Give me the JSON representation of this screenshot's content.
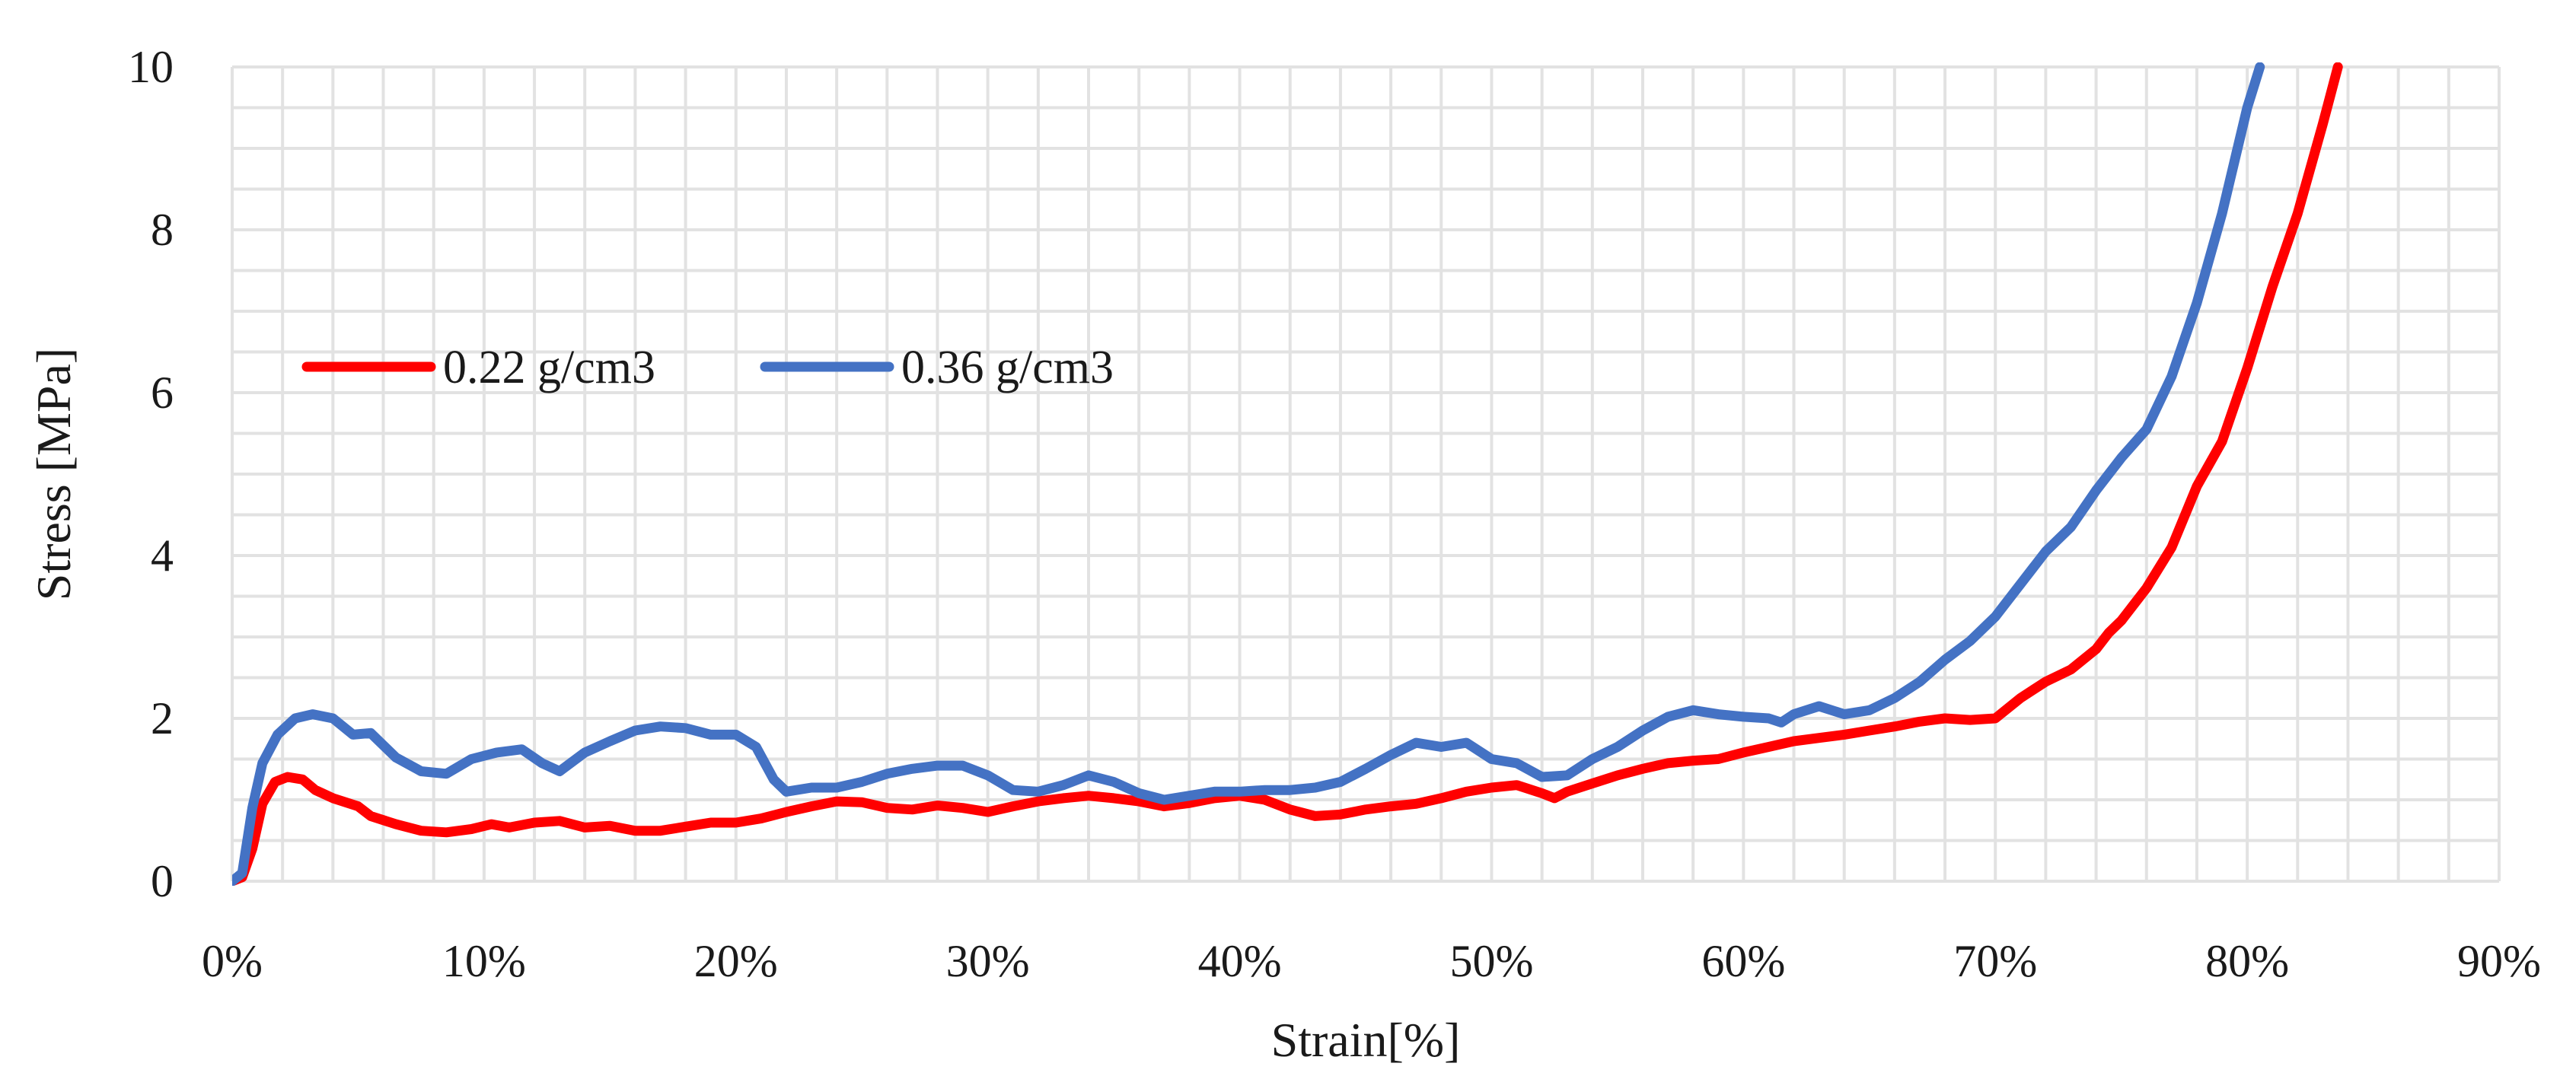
{
  "chart_data": {
    "type": "line",
    "title": "",
    "xlabel": "Strain[%]",
    "ylabel": "Stress [MPa]",
    "xlim": [
      0,
      90
    ],
    "ylim": [
      0,
      10
    ],
    "x_ticks": [
      0,
      10,
      20,
      30,
      40,
      50,
      60,
      70,
      80,
      90
    ],
    "x_tick_labels": [
      "0%",
      "10%",
      "20%",
      "30%",
      "40%",
      "50%",
      "60%",
      "70%",
      "80%",
      "90%"
    ],
    "y_ticks": [
      0,
      2,
      4,
      6,
      8,
      10
    ],
    "y_tick_labels": [
      "0",
      "2",
      "4",
      "6",
      "8",
      "10"
    ],
    "grid": true,
    "legend_position": "upper-left",
    "series": [
      {
        "name": "0.22 g/cm3",
        "color": "#ff0000",
        "points": [
          [
            0.0,
            0.0
          ],
          [
            0.4,
            0.05
          ],
          [
            0.8,
            0.4
          ],
          [
            1.2,
            0.95
          ],
          [
            1.7,
            1.22
          ],
          [
            2.2,
            1.28
          ],
          [
            2.8,
            1.25
          ],
          [
            3.3,
            1.12
          ],
          [
            4.0,
            1.02
          ],
          [
            5.0,
            0.92
          ],
          [
            5.5,
            0.8
          ],
          [
            6.5,
            0.7
          ],
          [
            7.5,
            0.62
          ],
          [
            8.5,
            0.6
          ],
          [
            9.5,
            0.64
          ],
          [
            10.3,
            0.7
          ],
          [
            11.0,
            0.66
          ],
          [
            12.0,
            0.72
          ],
          [
            13.0,
            0.74
          ],
          [
            14.0,
            0.66
          ],
          [
            15.0,
            0.68
          ],
          [
            16.0,
            0.62
          ],
          [
            17.0,
            0.62
          ],
          [
            18.0,
            0.67
          ],
          [
            19.0,
            0.72
          ],
          [
            20.0,
            0.72
          ],
          [
            21.0,
            0.77
          ],
          [
            22.0,
            0.85
          ],
          [
            23.0,
            0.92
          ],
          [
            24.0,
            0.98
          ],
          [
            25.0,
            0.97
          ],
          [
            26.0,
            0.9
          ],
          [
            27.0,
            0.88
          ],
          [
            28.0,
            0.93
          ],
          [
            29.0,
            0.9
          ],
          [
            30.0,
            0.85
          ],
          [
            31.0,
            0.92
          ],
          [
            32.0,
            0.98
          ],
          [
            33.0,
            1.02
          ],
          [
            34.0,
            1.05
          ],
          [
            35.0,
            1.02
          ],
          [
            36.0,
            0.98
          ],
          [
            37.0,
            0.92
          ],
          [
            38.0,
            0.96
          ],
          [
            39.0,
            1.02
          ],
          [
            40.0,
            1.05
          ],
          [
            41.0,
            1.0
          ],
          [
            42.0,
            0.88
          ],
          [
            43.0,
            0.8
          ],
          [
            44.0,
            0.82
          ],
          [
            45.0,
            0.88
          ],
          [
            46.0,
            0.92
          ],
          [
            47.0,
            0.95
          ],
          [
            48.0,
            1.02
          ],
          [
            49.0,
            1.1
          ],
          [
            50.0,
            1.15
          ],
          [
            51.0,
            1.18
          ],
          [
            52.0,
            1.08
          ],
          [
            52.5,
            1.02
          ],
          [
            53.0,
            1.1
          ],
          [
            54.0,
            1.2
          ],
          [
            55.0,
            1.3
          ],
          [
            56.0,
            1.38
          ],
          [
            57.0,
            1.45
          ],
          [
            58.0,
            1.48
          ],
          [
            59.0,
            1.5
          ],
          [
            60.0,
            1.58
          ],
          [
            61.0,
            1.65
          ],
          [
            62.0,
            1.72
          ],
          [
            63.0,
            1.76
          ],
          [
            64.0,
            1.8
          ],
          [
            65.0,
            1.85
          ],
          [
            66.0,
            1.9
          ],
          [
            67.0,
            1.96
          ],
          [
            68.0,
            2.0
          ],
          [
            69.0,
            1.98
          ],
          [
            70.0,
            2.0
          ],
          [
            71.0,
            2.25
          ],
          [
            72.0,
            2.45
          ],
          [
            73.0,
            2.6
          ],
          [
            74.0,
            2.85
          ],
          [
            74.5,
            3.05
          ],
          [
            75.0,
            3.2
          ],
          [
            76.0,
            3.6
          ],
          [
            77.0,
            4.1
          ],
          [
            78.0,
            4.85
          ],
          [
            79.0,
            5.4
          ],
          [
            80.0,
            6.3
          ],
          [
            81.0,
            7.3
          ],
          [
            82.0,
            8.2
          ],
          [
            83.0,
            9.3
          ],
          [
            83.6,
            10.0
          ]
        ]
      },
      {
        "name": "0.36 g/cm3",
        "color": "#4472c4",
        "points": [
          [
            0.0,
            0.0
          ],
          [
            0.4,
            0.1
          ],
          [
            0.8,
            0.9
          ],
          [
            1.2,
            1.45
          ],
          [
            1.8,
            1.8
          ],
          [
            2.5,
            2.0
          ],
          [
            3.2,
            2.05
          ],
          [
            4.0,
            2.0
          ],
          [
            4.8,
            1.8
          ],
          [
            5.5,
            1.82
          ],
          [
            6.5,
            1.52
          ],
          [
            7.5,
            1.35
          ],
          [
            8.5,
            1.32
          ],
          [
            9.5,
            1.5
          ],
          [
            10.5,
            1.58
          ],
          [
            11.5,
            1.62
          ],
          [
            12.3,
            1.45
          ],
          [
            13.0,
            1.35
          ],
          [
            14.0,
            1.58
          ],
          [
            15.0,
            1.72
          ],
          [
            16.0,
            1.85
          ],
          [
            17.0,
            1.9
          ],
          [
            18.0,
            1.88
          ],
          [
            19.0,
            1.8
          ],
          [
            20.0,
            1.8
          ],
          [
            20.8,
            1.65
          ],
          [
            21.5,
            1.25
          ],
          [
            22.0,
            1.1
          ],
          [
            23.0,
            1.15
          ],
          [
            24.0,
            1.15
          ],
          [
            25.0,
            1.22
          ],
          [
            26.0,
            1.32
          ],
          [
            27.0,
            1.38
          ],
          [
            28.0,
            1.42
          ],
          [
            29.0,
            1.42
          ],
          [
            30.0,
            1.3
          ],
          [
            31.0,
            1.12
          ],
          [
            32.0,
            1.1
          ],
          [
            33.0,
            1.18
          ],
          [
            34.0,
            1.3
          ],
          [
            35.0,
            1.22
          ],
          [
            36.0,
            1.08
          ],
          [
            37.0,
            1.0
          ],
          [
            38.0,
            1.05
          ],
          [
            39.0,
            1.1
          ],
          [
            40.0,
            1.1
          ],
          [
            41.0,
            1.12
          ],
          [
            42.0,
            1.12
          ],
          [
            43.0,
            1.15
          ],
          [
            44.0,
            1.22
          ],
          [
            45.0,
            1.38
          ],
          [
            46.0,
            1.55
          ],
          [
            47.0,
            1.7
          ],
          [
            48.0,
            1.65
          ],
          [
            49.0,
            1.7
          ],
          [
            50.0,
            1.5
          ],
          [
            51.0,
            1.45
          ],
          [
            52.0,
            1.28
          ],
          [
            53.0,
            1.3
          ],
          [
            54.0,
            1.5
          ],
          [
            55.0,
            1.65
          ],
          [
            56.0,
            1.85
          ],
          [
            57.0,
            2.02
          ],
          [
            58.0,
            2.1
          ],
          [
            59.0,
            2.05
          ],
          [
            60.0,
            2.02
          ],
          [
            61.0,
            2.0
          ],
          [
            61.5,
            1.95
          ],
          [
            62.0,
            2.05
          ],
          [
            63.0,
            2.15
          ],
          [
            64.0,
            2.05
          ],
          [
            65.0,
            2.1
          ],
          [
            66.0,
            2.25
          ],
          [
            67.0,
            2.45
          ],
          [
            68.0,
            2.72
          ],
          [
            69.0,
            2.95
          ],
          [
            70.0,
            3.25
          ],
          [
            71.0,
            3.65
          ],
          [
            72.0,
            4.05
          ],
          [
            73.0,
            4.35
          ],
          [
            74.0,
            4.8
          ],
          [
            75.0,
            5.2
          ],
          [
            76.0,
            5.55
          ],
          [
            77.0,
            6.2
          ],
          [
            78.0,
            7.1
          ],
          [
            79.0,
            8.2
          ],
          [
            80.0,
            9.5
          ],
          [
            80.5,
            10.0
          ]
        ]
      }
    ]
  }
}
